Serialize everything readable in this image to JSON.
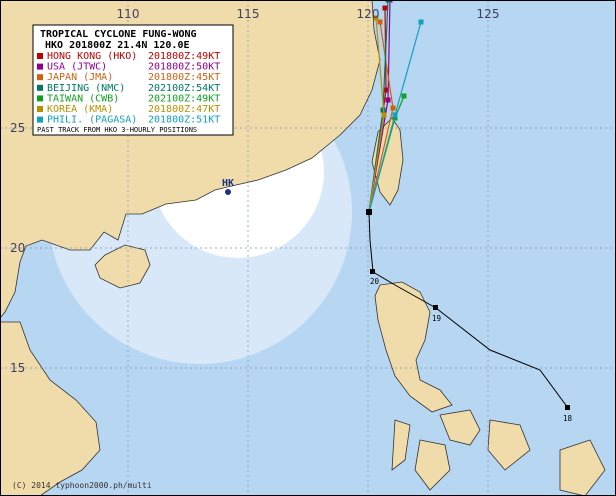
{
  "map": {
    "lon_labels": [
      "110",
      "115",
      "120",
      "125"
    ],
    "lat_labels": [
      "25",
      "20",
      "15"
    ],
    "legend": {
      "title": "TROPICAL CYCLONE FUNG-WONG",
      "subtitle": "HKO 201800Z 21.4N 120.0E",
      "entries": [
        {
          "agency": "HONG KONG (HKO)",
          "forecast": "201800Z:49KT",
          "color": "#c00000"
        },
        {
          "agency": "USA (JTWC)",
          "forecast": "201800Z:50KT",
          "color": "#900090"
        },
        {
          "agency": "JAPAN (JMA)",
          "forecast": "201800Z:45KT",
          "color": "#d06010"
        },
        {
          "agency": "BEIJING (NMC)",
          "forecast": "202100Z:54KT",
          "color": "#007a60"
        },
        {
          "agency": "TAIWAN (CWB)",
          "forecast": "202100Z:49KT",
          "color": "#10a020"
        },
        {
          "agency": "KOREA (KMA)",
          "forecast": "201800Z:47KT",
          "color": "#b89000"
        },
        {
          "agency": "PHILI. (PAGASA)",
          "forecast": "201800Z:51KT",
          "color": "#10a0c0"
        }
      ],
      "footnote": "PAST TRACK FROM HKO 3-HOURLY POSITIONS"
    },
    "city_label": "HK",
    "track_labels": [
      "20",
      "19",
      "18"
    ],
    "copyright": "(C) 2014 typhoon2000.ph/multi"
  }
}
